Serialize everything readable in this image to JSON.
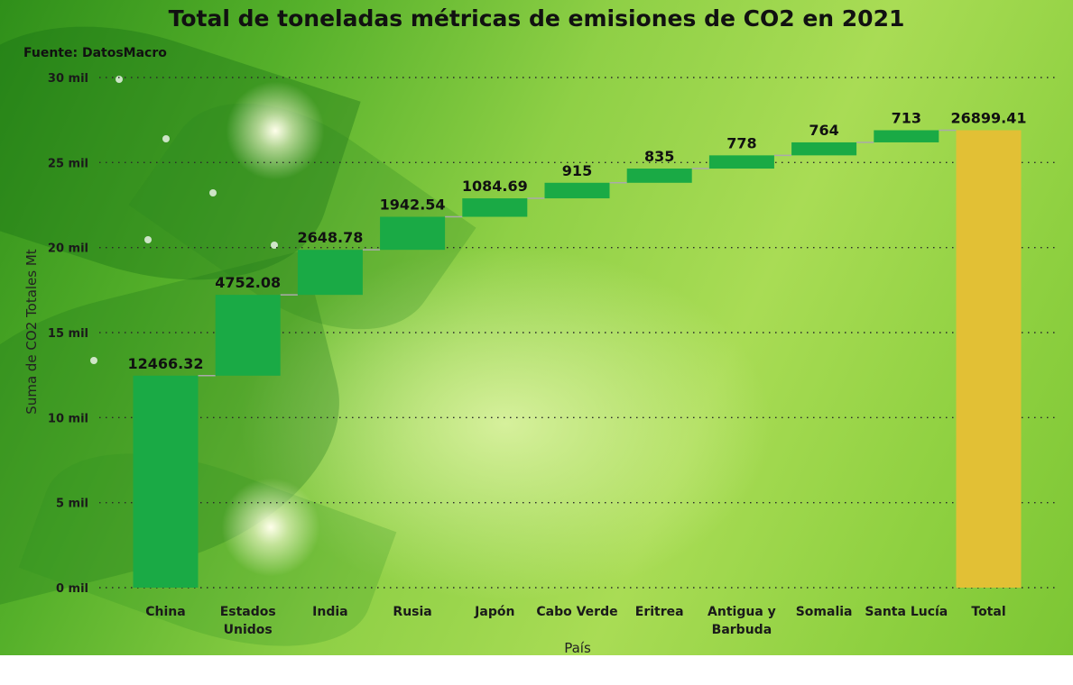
{
  "title": "Total de toneladas métricas de emisiones de CO2 en 2021",
  "source": "Fuente: DatosMacro",
  "colors": {
    "increase": "#1aaa45",
    "total": "#e2c035",
    "connector": "#aaaaaa"
  },
  "chart_data": {
    "type": "waterfall",
    "title": "Total de toneladas métricas de emisiones de CO2 en 2021",
    "xlabel": "País",
    "ylabel": "Suma de CO2 Totales Mt",
    "ylim": [
      0,
      30000
    ],
    "yticks": [
      0,
      5000,
      10000,
      15000,
      20000,
      25000,
      30000
    ],
    "ytick_labels": [
      "0 mil",
      "5 mil",
      "10 mil",
      "15 mil",
      "20 mil",
      "25 mil",
      "30 mil"
    ],
    "grid": true,
    "categories": [
      [
        "China"
      ],
      [
        "Estados",
        "Unidos"
      ],
      [
        "India"
      ],
      [
        "Rusia"
      ],
      [
        "Japón"
      ],
      [
        "Cabo Verde"
      ],
      [
        "Eritrea"
      ],
      [
        "Antigua y",
        "Barbuda"
      ],
      [
        "Somalia"
      ],
      [
        "Santa Lucía"
      ],
      [
        "Total"
      ]
    ],
    "values": [
      12466.32,
      4752.08,
      2648.78,
      1942.54,
      1084.69,
      915,
      835,
      778,
      764,
      713,
      26899.41
    ],
    "value_labels": [
      "12466.32",
      "4752.08",
      "2648.78",
      "1942.54",
      "1084.69",
      "915",
      "835",
      "778",
      "764",
      "713",
      "26899.41"
    ],
    "is_total": [
      false,
      false,
      false,
      false,
      false,
      false,
      false,
      false,
      false,
      false,
      true
    ]
  }
}
